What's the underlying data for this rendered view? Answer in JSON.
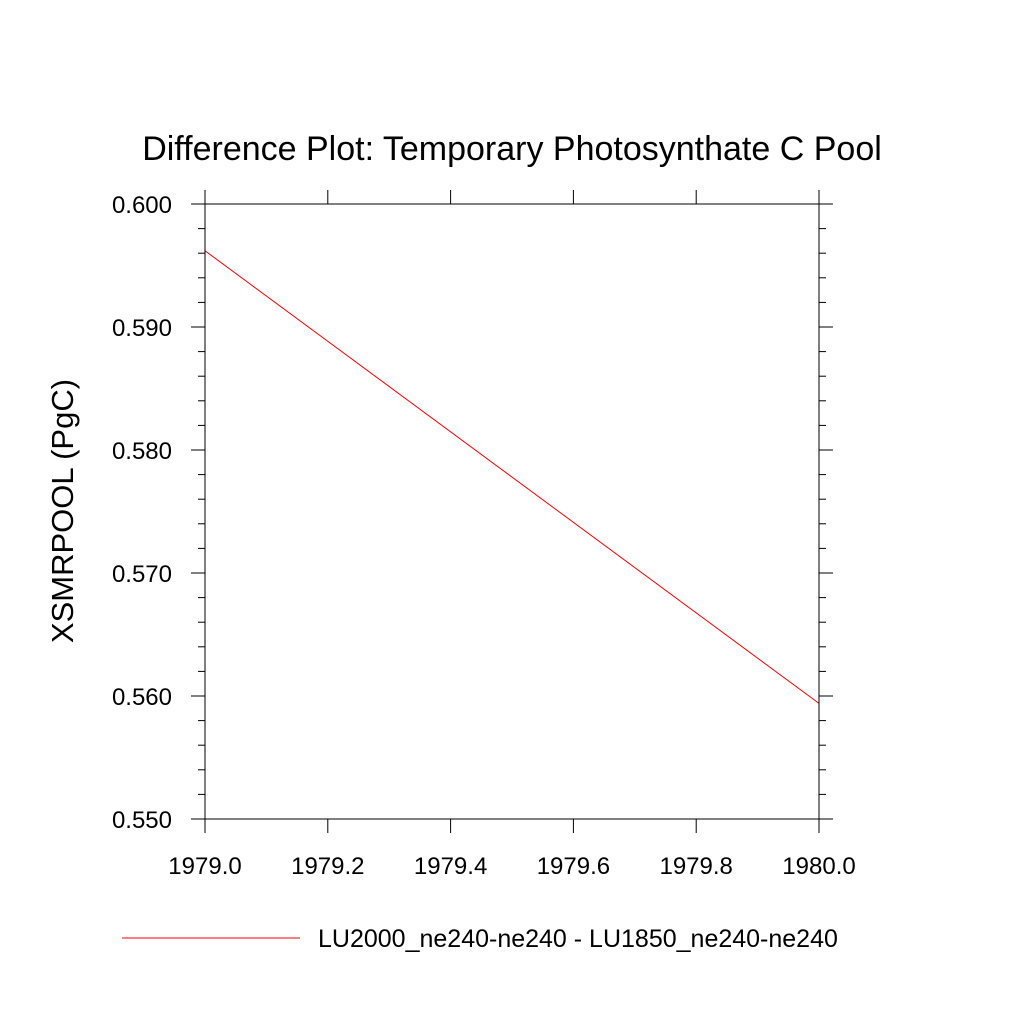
{
  "chart_data": {
    "type": "line",
    "title": "Difference Plot: Temporary Photosynthate C Pool",
    "xlabel": "",
    "ylabel": "XSMRPOOL  (PgC)",
    "xlim": [
      1979.0,
      1980.0
    ],
    "ylim": [
      0.55,
      0.6
    ],
    "x_ticks": [
      "1979.0",
      "1979.2",
      "1979.4",
      "1979.6",
      "1979.8",
      "1980.0"
    ],
    "y_ticks": [
      "0.550",
      "0.560",
      "0.570",
      "0.580",
      "0.590",
      "0.600"
    ],
    "grid": false,
    "legend_position": "bottom",
    "series": [
      {
        "name": "LU2000_ne240-ne240 - LU1850_ne240-ne240",
        "color": "#ff0000",
        "x": [
          1979.0,
          1980.0
        ],
        "y": [
          0.5962,
          0.5594
        ]
      }
    ]
  }
}
